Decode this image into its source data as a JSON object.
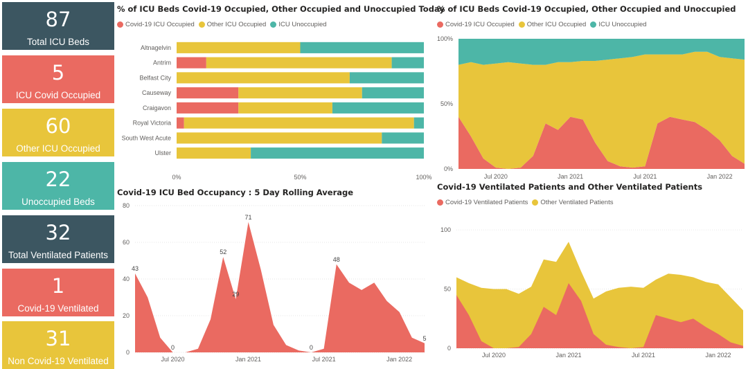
{
  "colors": {
    "covid": "#ea6a61",
    "other": "#e8c53b",
    "unocc": "#4db6a7",
    "dark": "#3c5661"
  },
  "kpis": [
    {
      "value": "87",
      "label": "Total ICU Beds",
      "color": "#3c5661"
    },
    {
      "value": "5",
      "label": "ICU Covid Occupied",
      "color": "#ea6a61"
    },
    {
      "value": "60",
      "label": "Other ICU Occupied",
      "color": "#e8c53b"
    },
    {
      "value": "22",
      "label": "Unoccupied Beds",
      "color": "#4db6a7"
    },
    {
      "value": "32",
      "label": "Total Ventilated Patients",
      "color": "#3c5661"
    },
    {
      "value": "1",
      "label": "Covid-19 Ventilated",
      "color": "#ea6a61"
    },
    {
      "value": "31",
      "label": "Non Covid-19 Ventilated",
      "color": "#e8c53b"
    }
  ],
  "chart_data": [
    {
      "type": "bar",
      "title": "% of ICU Beds Covid-19 Occupied, Other Occupied and Unoccupied Today",
      "stacked": "100%",
      "orientation": "horizontal",
      "categories": [
        "Altnagelvin",
        "Antrim",
        "Belfast City",
        "Causeway",
        "Craigavon",
        "Royal Victoria",
        "South West Acute",
        "Ulster"
      ],
      "series": [
        {
          "name": "Covid-19 ICU Occupied",
          "values": [
            0,
            12,
            0,
            25,
            25,
            3,
            0,
            0
          ]
        },
        {
          "name": "Other ICU Occupied",
          "values": [
            50,
            75,
            70,
            50,
            38,
            93,
            83,
            30
          ]
        },
        {
          "name": "ICU Unoccupied",
          "values": [
            50,
            13,
            30,
            25,
            37,
            4,
            17,
            70
          ]
        }
      ],
      "xticks": [
        "0%",
        "50%",
        "100%"
      ],
      "xlim": [
        0,
        100
      ]
    },
    {
      "type": "area",
      "title": "% of ICU Beds Covid-19 Occupied, Other Occupied and Unoccupied",
      "stacked": "100%",
      "x": [
        "Apr 2020",
        "May 2020",
        "Jun 2020",
        "Jul 2020",
        "Aug 2020",
        "Sep 2020",
        "Oct 2020",
        "Nov 2020",
        "Dec 2020",
        "Jan 2021",
        "Feb 2021",
        "Mar 2021",
        "Apr 2021",
        "May 2021",
        "Jun 2021",
        "Jul 2021",
        "Aug 2021",
        "Sep 2021",
        "Oct 2021",
        "Nov 2021",
        "Dec 2021",
        "Jan 2022",
        "Feb 2022",
        "Mar 2022"
      ],
      "series": [
        {
          "name": "Covid-19 ICU Occupied",
          "values": [
            40,
            25,
            8,
            1,
            0,
            1,
            10,
            35,
            30,
            40,
            38,
            20,
            6,
            2,
            1,
            2,
            35,
            40,
            38,
            36,
            30,
            22,
            10,
            4
          ]
        },
        {
          "name": "Other ICU Occupied",
          "values": [
            40,
            57,
            72,
            80,
            82,
            80,
            70,
            45,
            52,
            42,
            45,
            63,
            78,
            83,
            85,
            86,
            53,
            48,
            50,
            54,
            60,
            64,
            75,
            80
          ]
        },
        {
          "name": "ICU Unoccupied",
          "values": [
            20,
            18,
            20,
            19,
            18,
            19,
            20,
            20,
            18,
            18,
            17,
            17,
            16,
            15,
            14,
            12,
            12,
            12,
            12,
            10,
            10,
            14,
            15,
            16
          ]
        }
      ],
      "yticks": [
        "0%",
        "50%",
        "100%"
      ],
      "xticks": [
        "Jul 2020",
        "Jan 2021",
        "Jul 2021",
        "Jan 2022"
      ],
      "ylim": [
        0,
        100
      ]
    },
    {
      "type": "area",
      "title": "Covid-19 ICU Bed Occupancy : 5 Day Rolling Average",
      "x": [
        "Apr 2020",
        "May 2020",
        "Jun 2020",
        "Jul 2020",
        "Aug 2020",
        "Sep 2020",
        "Oct 2020",
        "Nov 2020",
        "Dec 2020",
        "Jan 2021",
        "Feb 2021",
        "Mar 2021",
        "Apr 2021",
        "May 2021",
        "Jun 2021",
        "Jul 2021",
        "Aug 2021",
        "Sep 2021",
        "Oct 2021",
        "Nov 2021",
        "Dec 2021",
        "Jan 2022",
        "Feb 2022",
        "Mar 2022"
      ],
      "values": [
        43,
        30,
        8,
        0,
        0,
        2,
        18,
        52,
        29,
        71,
        45,
        15,
        4,
        1,
        0,
        2,
        48,
        38,
        34,
        38,
        28,
        22,
        8,
        5
      ],
      "data_labels": [
        {
          "x": "Apr 2020",
          "value": 43
        },
        {
          "x": "Jul 2020",
          "value": 0
        },
        {
          "x": "Nov 2020",
          "value": 52
        },
        {
          "x": "Dec 2020",
          "value": 29
        },
        {
          "x": "Jan 2021",
          "value": 71
        },
        {
          "x": "Jun 2021",
          "value": 0
        },
        {
          "x": "Aug 2021",
          "value": 48
        },
        {
          "x": "Mar 2022",
          "value": 5
        }
      ],
      "yticks": [
        "0",
        "20",
        "40",
        "60",
        "80"
      ],
      "xticks": [
        "Jul 2020",
        "Jan 2021",
        "Jul 2021",
        "Jan 2022"
      ],
      "ylim": [
        0,
        80
      ]
    },
    {
      "type": "area",
      "title": "Covid-19 Ventilated Patients and Other Ventilated Patients",
      "stacked": true,
      "x": [
        "Apr 2020",
        "May 2020",
        "Jun 2020",
        "Jul 2020",
        "Aug 2020",
        "Sep 2020",
        "Oct 2020",
        "Nov 2020",
        "Dec 2020",
        "Jan 2021",
        "Feb 2021",
        "Mar 2021",
        "Apr 2021",
        "May 2021",
        "Jun 2021",
        "Jul 2021",
        "Aug 2021",
        "Sep 2021",
        "Oct 2021",
        "Nov 2021",
        "Dec 2021",
        "Jan 2022",
        "Feb 2022",
        "Mar 2022"
      ],
      "series": [
        {
          "name": "Covid-19 Ventilated Patients",
          "values": [
            45,
            28,
            6,
            0,
            0,
            1,
            12,
            35,
            28,
            55,
            40,
            12,
            3,
            1,
            0,
            1,
            28,
            25,
            22,
            25,
            18,
            12,
            5,
            2
          ]
        },
        {
          "name": "Other Ventilated Patients",
          "values": [
            15,
            27,
            45,
            50,
            50,
            45,
            40,
            40,
            45,
            35,
            25,
            30,
            45,
            50,
            52,
            50,
            30,
            38,
            40,
            35,
            38,
            42,
            38,
            30
          ]
        }
      ],
      "yticks": [
        "0",
        "50",
        "100"
      ],
      "xticks": [
        "Jul 2020",
        "Jan 2021",
        "Jul 2021",
        "Jan 2022"
      ],
      "ylim": [
        0,
        110
      ]
    }
  ]
}
